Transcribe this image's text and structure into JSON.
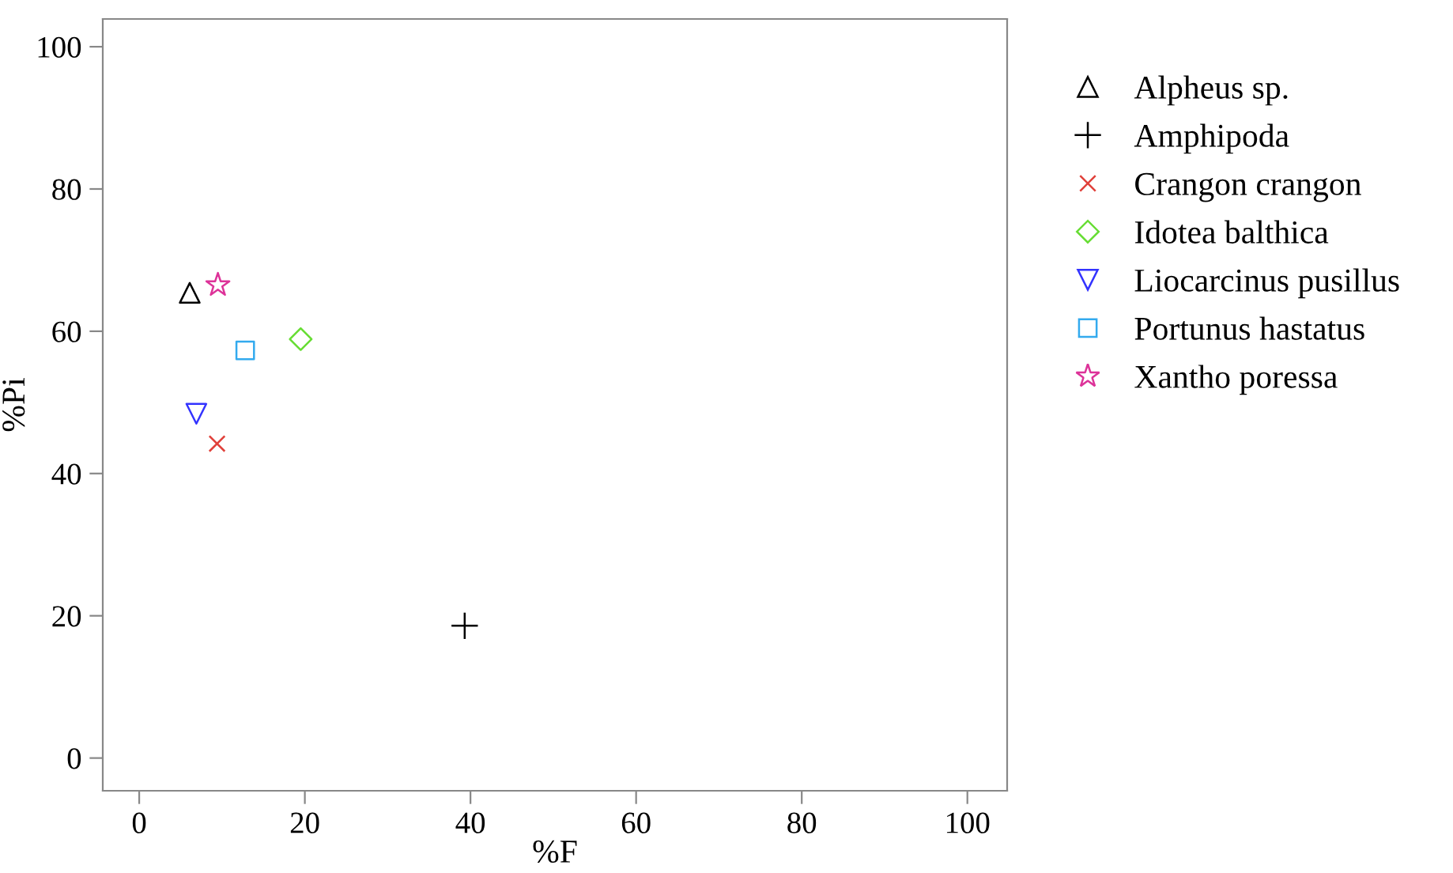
{
  "chart_data": {
    "type": "scatter",
    "xlabel": "%F",
    "ylabel": "%Pi",
    "xlim": [
      -4.4,
      104.8
    ],
    "ylim": [
      -4.6,
      103.9
    ],
    "xticks": [
      0,
      20,
      40,
      60,
      80,
      100
    ],
    "yticks": [
      0,
      20,
      40,
      60,
      80,
      100
    ],
    "grid": false,
    "legend": "right",
    "series": [
      {
        "name": "Alpheus sp.",
        "color": "#000000",
        "marker": "triangle",
        "x": [
          6.1
        ],
        "values": [
          65.4
        ]
      },
      {
        "name": "Amphipoda",
        "color": "#000000",
        "marker": "plus",
        "x": [
          39.3
        ],
        "values": [
          18.6
        ]
      },
      {
        "name": "Crangon crangon",
        "color": "#e0403a",
        "marker": "cross",
        "x": [
          9.4
        ],
        "values": [
          44.2
        ]
      },
      {
        "name": "Idotea balthica",
        "color": "#66dd33",
        "marker": "diamond",
        "x": [
          19.5
        ],
        "values": [
          58.9
        ]
      },
      {
        "name": "Liocarcinus pusillus",
        "color": "#3333ff",
        "marker": "triangle_down",
        "x": [
          6.9
        ],
        "values": [
          48.4
        ]
      },
      {
        "name": "Portunus hastatus",
        "color": "#33aaee",
        "marker": "square",
        "x": [
          12.8
        ],
        "values": [
          57.3
        ]
      },
      {
        "name": "Xantho poressa",
        "color": "#dd3399",
        "marker": "star",
        "x": [
          9.5
        ],
        "values": [
          66.5
        ]
      }
    ]
  }
}
